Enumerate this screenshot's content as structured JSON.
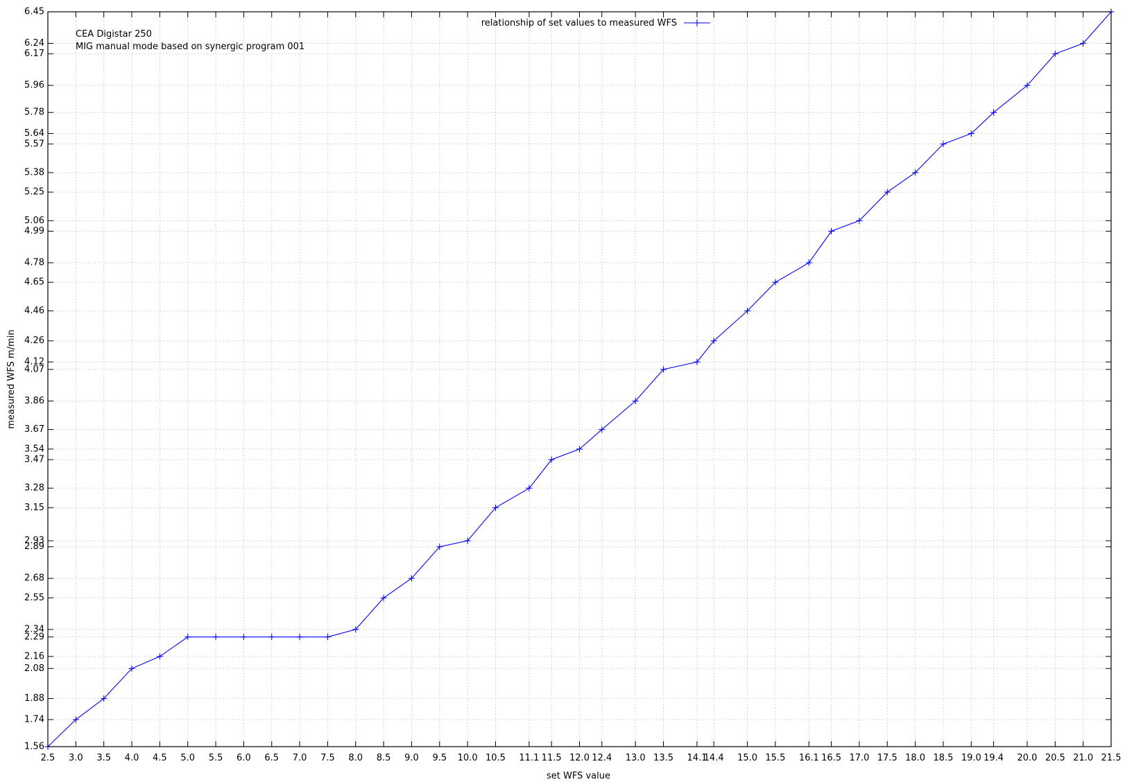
{
  "chart_data": {
    "type": "line",
    "title": "",
    "annotations": [
      "CEA Digistar 250",
      "MIG manual mode based on synergic program 001"
    ],
    "xlabel": "set WFS value",
    "ylabel": "measured WFS m/min",
    "xlim": [
      2.5,
      21.5
    ],
    "ylim": [
      1.56,
      6.45
    ],
    "grid": true,
    "legend_position": "top-center",
    "x_ticks": [
      "2.5",
      "3.0",
      "3.5",
      "4.0",
      "4.5",
      "5.0",
      "5.5",
      "6.0",
      "6.5",
      "7.0",
      "7.5",
      "8.0",
      "8.5",
      "9.0",
      "9.5",
      "10.0",
      "10.5",
      "11.1",
      "11.5",
      "12.0",
      "12.4",
      "13.0",
      "13.5",
      "14.1",
      "14.4",
      "15.0",
      "15.5",
      "16.1",
      "16.5",
      "17.0",
      "17.5",
      "18.0",
      "18.5",
      "19.0",
      "19.4",
      "20.0",
      "20.5",
      "21.0",
      "21.5"
    ],
    "y_ticks": [
      "1.56",
      "1.74",
      "1.88",
      "2.08",
      "2.16",
      "2.29",
      "2.34",
      "2.55",
      "2.68",
      "2.89",
      "2.93",
      "3.15",
      "3.28",
      "3.47",
      "3.54",
      "3.67",
      "3.86",
      "4.07",
      "4.12",
      "4.26",
      "4.46",
      "4.65",
      "4.78",
      "4.99",
      "5.06",
      "5.25",
      "5.38",
      "5.57",
      "5.64",
      "5.78",
      "5.96",
      "6.17",
      "6.24",
      "6.45"
    ],
    "series": [
      {
        "name": "relationship of set values to measured WFS",
        "color": "#0000ff",
        "x": [
          2.5,
          3.0,
          3.5,
          4.0,
          4.5,
          5.0,
          5.5,
          6.0,
          6.5,
          7.0,
          7.5,
          8.0,
          8.5,
          9.0,
          9.5,
          10.0,
          10.5,
          11.1,
          11.5,
          12.0,
          12.4,
          13.0,
          13.5,
          14.1,
          14.4,
          15.0,
          15.5,
          16.1,
          16.5,
          17.0,
          17.5,
          18.0,
          18.5,
          19.0,
          19.4,
          20.0,
          20.5,
          21.0,
          21.5
        ],
        "y": [
          1.56,
          1.74,
          1.88,
          2.08,
          2.16,
          2.29,
          2.29,
          2.29,
          2.29,
          2.29,
          2.29,
          2.34,
          2.55,
          2.68,
          2.89,
          2.93,
          3.15,
          3.28,
          3.47,
          3.54,
          3.67,
          3.86,
          4.07,
          4.12,
          4.26,
          4.46,
          4.65,
          4.78,
          4.99,
          5.06,
          5.25,
          5.38,
          5.57,
          5.64,
          5.78,
          5.96,
          6.17,
          6.24,
          6.45
        ]
      }
    ]
  }
}
